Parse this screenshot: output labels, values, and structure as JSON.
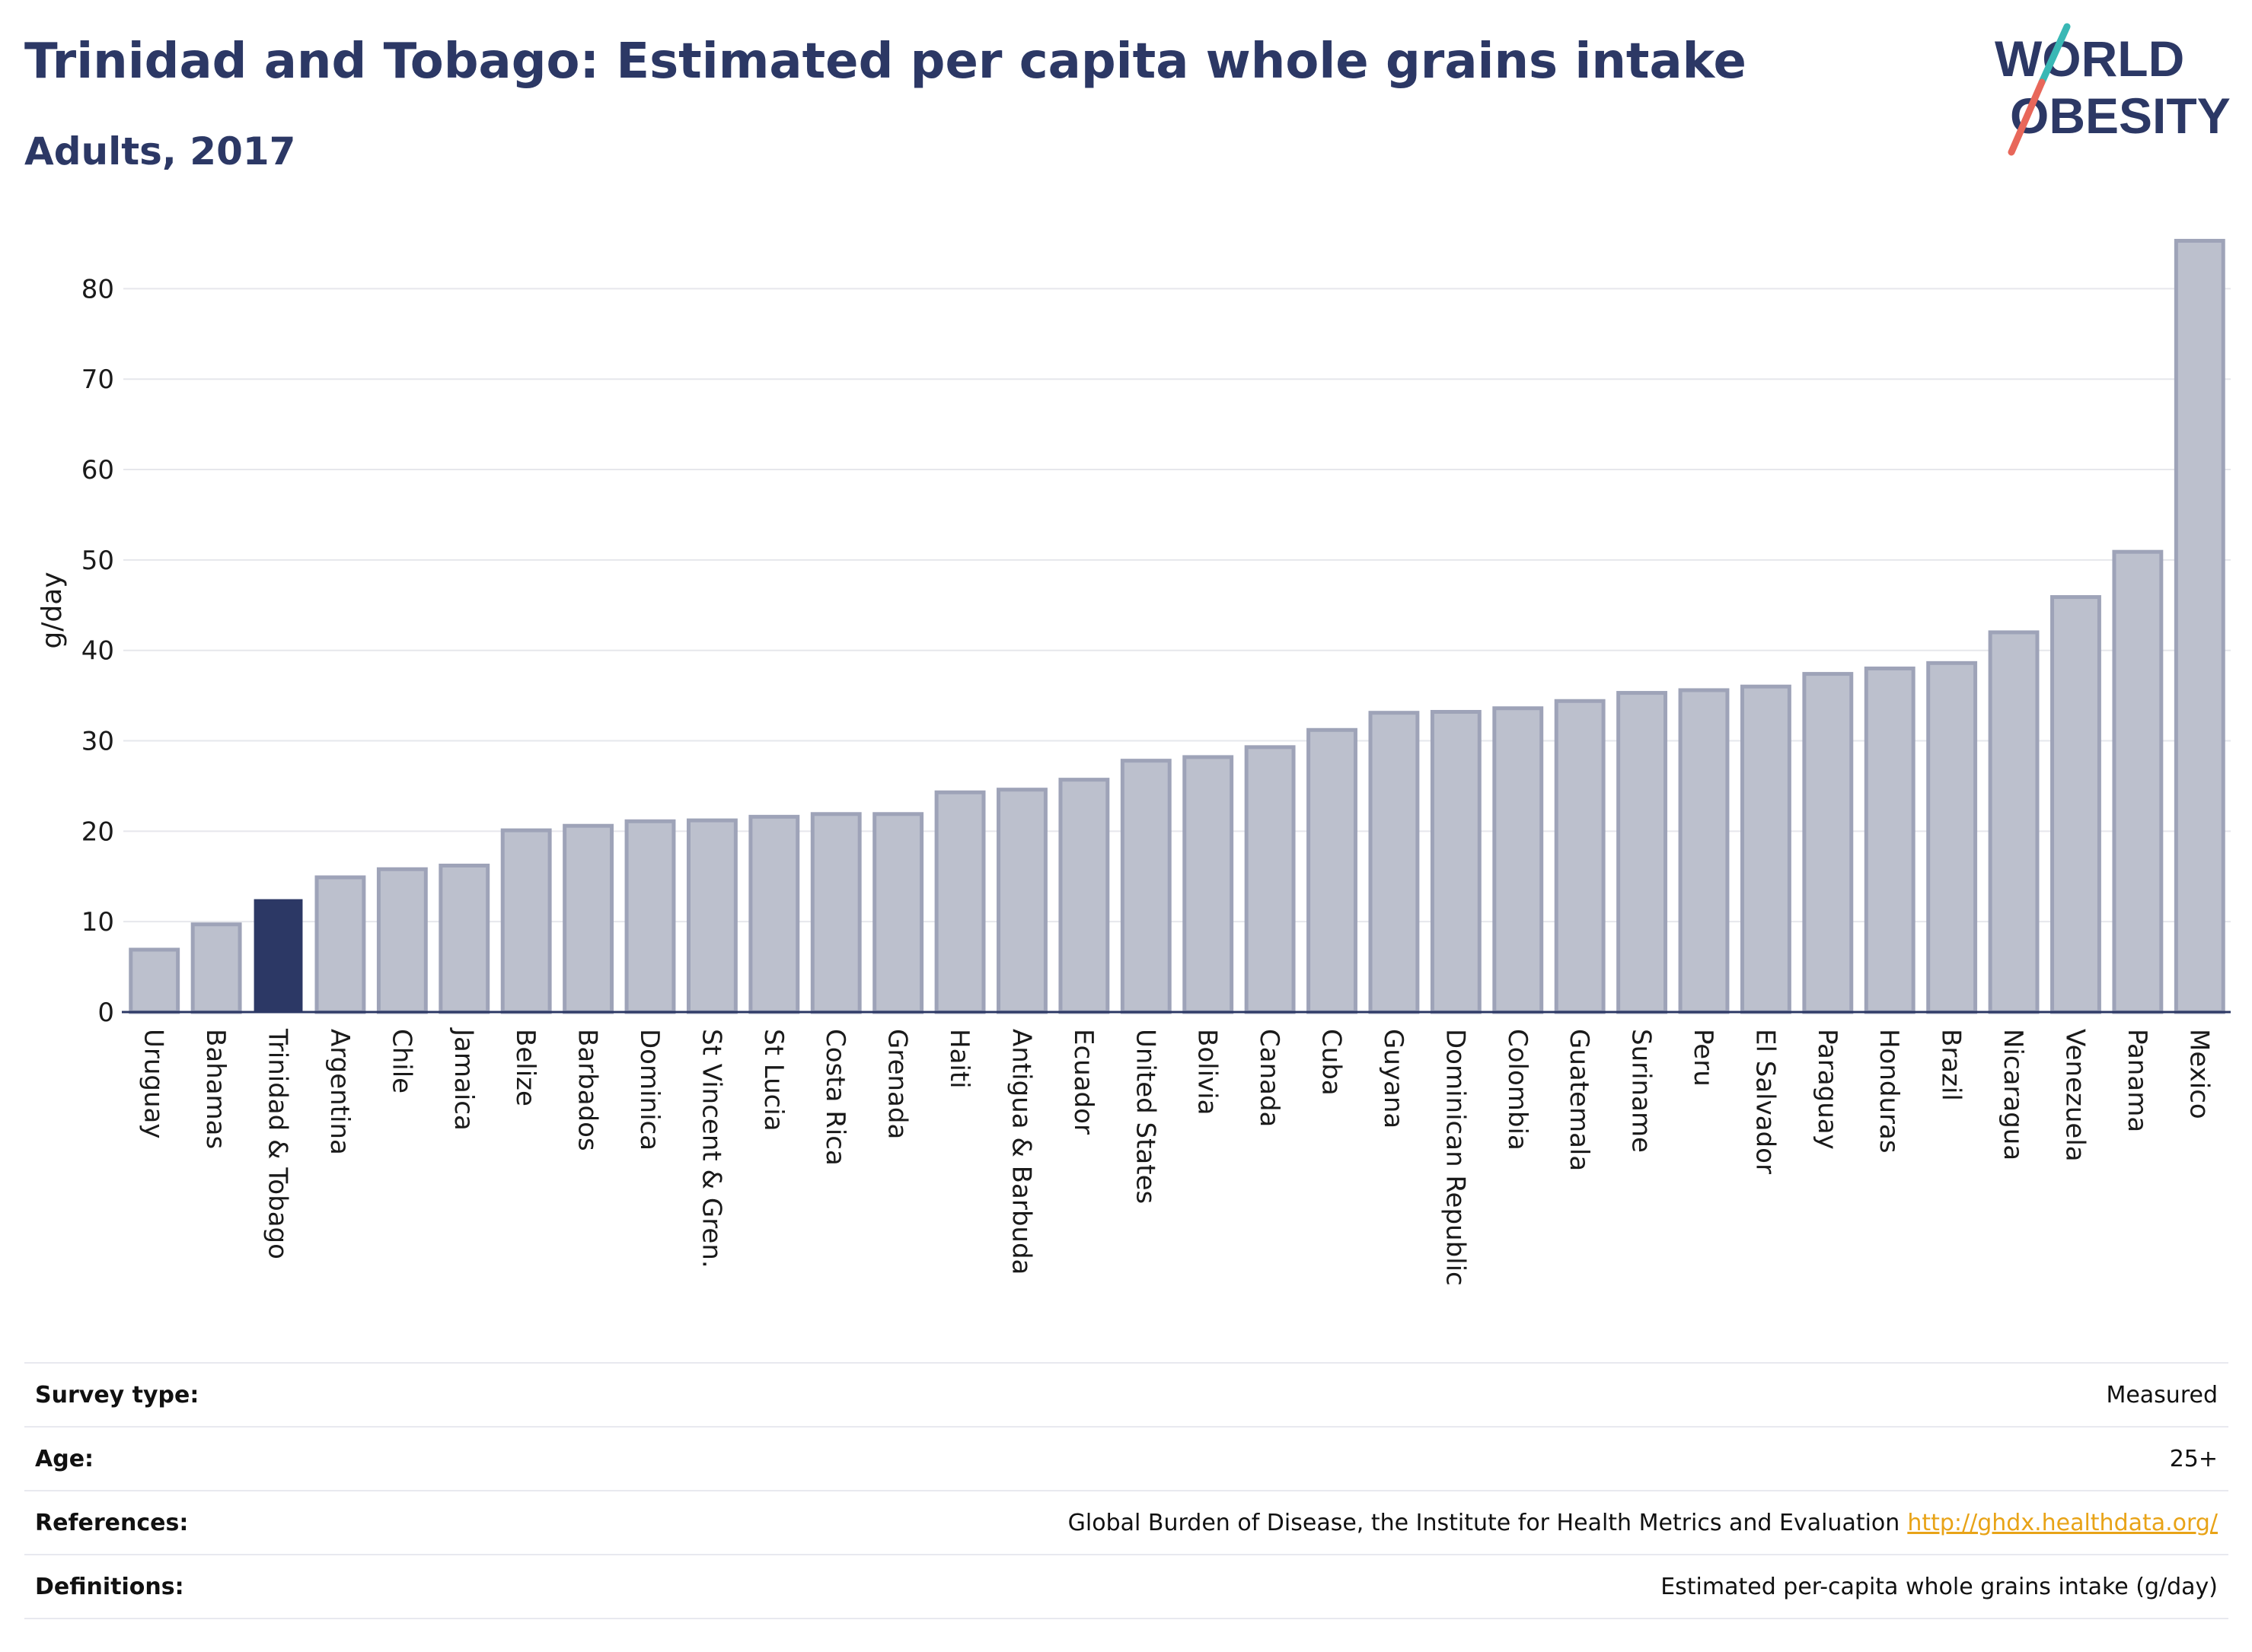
{
  "title": "Trinidad and Tobago: Estimated per capita whole grains intake",
  "subtitle": "Adults, 2017",
  "logo": {
    "line1": "WORLD",
    "line2": "OBESITY"
  },
  "colors": {
    "highlight": "#2c3865",
    "bar_fill": "#bcc0cd",
    "bar_stroke": "#9ea3b8",
    "text_dark": "#2c3865",
    "link": "#e8a317",
    "logo_teal": "#39b8b5",
    "logo_coral": "#e8675a"
  },
  "chart_data": {
    "type": "bar",
    "title": "Trinidad and Tobago: Estimated per capita whole grains intake",
    "subtitle": "Adults, 2017",
    "xlabel": "",
    "ylabel": "g/day",
    "ylim": [
      0,
      85
    ],
    "yticks": [
      0,
      10,
      20,
      30,
      40,
      50,
      60,
      70,
      80
    ],
    "grid": true,
    "highlight": "Trinidad & Tobago",
    "categories": [
      "Uruguay",
      "Bahamas",
      "Trinidad & Tobago",
      "Argentina",
      "Chile",
      "Jamaica",
      "Belize",
      "Barbados",
      "Dominica",
      "St Vincent & Gren.",
      "St Lucia",
      "Costa Rica",
      "Grenada",
      "Haiti",
      "Antigua & Barbuda",
      "Ecuador",
      "United States",
      "Bolivia",
      "Canada",
      "Cuba",
      "Guyana",
      "Dominican Republic",
      "Colombia",
      "Guatemala",
      "Suriname",
      "Peru",
      "El Salvador",
      "Paraguay",
      "Honduras",
      "Brazil",
      "Nicaragua",
      "Venezuela",
      "Panama",
      "Mexico"
    ],
    "values": [
      6.9,
      9.7,
      12.4,
      14.9,
      15.8,
      16.2,
      20.1,
      20.6,
      21.1,
      21.2,
      21.6,
      21.9,
      21.9,
      24.3,
      24.6,
      25.7,
      27.8,
      28.2,
      29.3,
      31.2,
      33.1,
      33.2,
      33.6,
      34.4,
      35.3,
      35.6,
      36.0,
      37.4,
      38.0,
      38.6,
      42.0,
      45.9,
      50.9,
      85.3
    ]
  },
  "meta": [
    {
      "key": "Survey type:",
      "value": "Measured"
    },
    {
      "key": "Age:",
      "value": "25+"
    },
    {
      "key": "References:",
      "value": "Global Burden of Disease, the Institute for Health Metrics and Evaluation",
      "link": "http://ghdx.healthdata.org/"
    },
    {
      "key": "Definitions:",
      "value": "Estimated per-capita whole grains intake (g/day)"
    }
  ]
}
